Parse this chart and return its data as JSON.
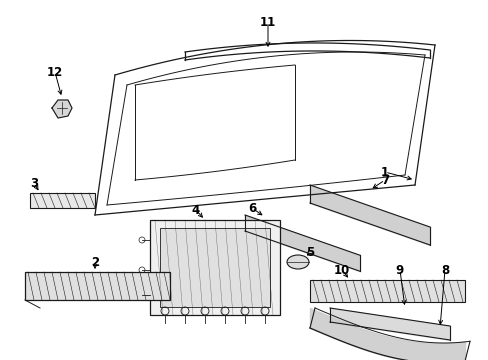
{
  "bg_color": "#ffffff",
  "line_color": "#1a1a1a",
  "gray_fill": "#c8c8c8",
  "label_fontsize": 8,
  "figsize": [
    4.89,
    3.6
  ],
  "dpi": 100
}
